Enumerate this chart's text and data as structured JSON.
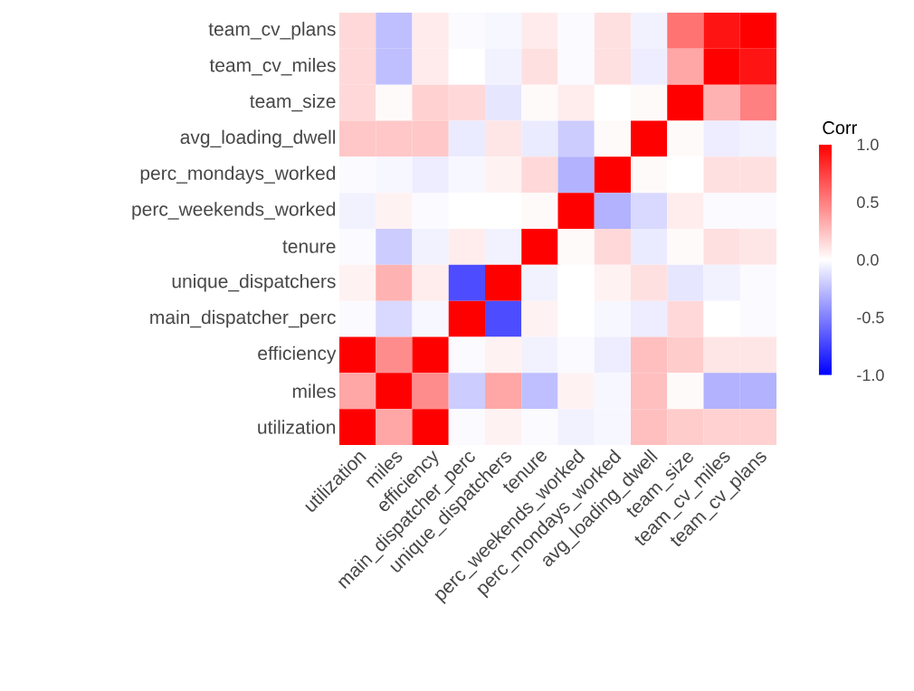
{
  "chart_data": {
    "type": "heatmap",
    "clabel": "Corr",
    "categories": [
      "utilization",
      "miles",
      "efficiency",
      "main_dispatcher_perc",
      "unique_dispatchers",
      "tenure",
      "perc_weekends_worked",
      "perc_mondays_worked",
      "avg_loading_dwell",
      "team_size",
      "team_cv_miles",
      "team_cv_plans"
    ],
    "y_categories": [
      "team_cv_plans",
      "team_cv_miles",
      "team_size",
      "avg_loading_dwell",
      "perc_mondays_worked",
      "perc_weekends_worked",
      "tenure",
      "unique_dispatchers",
      "main_dispatcher_perc",
      "efficiency",
      "miles",
      "utilization"
    ],
    "cells": [
      [
        0.15,
        -0.25,
        0.08,
        -0.02,
        -0.03,
        0.08,
        -0.02,
        0.12,
        -0.05,
        0.55,
        0.92,
        1
      ],
      [
        0.15,
        -0.25,
        0.08,
        0,
        -0.05,
        0.12,
        -0.02,
        0.12,
        -0.07,
        0.35,
        1,
        0.92
      ],
      [
        0.15,
        0.02,
        0.18,
        0.15,
        -0.1,
        0.02,
        0.07,
        0,
        0.02,
        1,
        0.3,
        0.5
      ],
      [
        0.22,
        0.22,
        0.22,
        -0.08,
        0.1,
        -0.08,
        -0.2,
        0.02,
        1,
        0.02,
        -0.07,
        -0.05
      ],
      [
        -0.02,
        -0.03,
        -0.07,
        -0.03,
        0.05,
        0.15,
        -0.3,
        1,
        0.02,
        0,
        0.12,
        0.12
      ],
      [
        -0.05,
        0.05,
        -0.02,
        0,
        0,
        0.02,
        1,
        -0.3,
        -0.15,
        0.07,
        -0.02,
        -0.02
      ],
      [
        -0.02,
        -0.2,
        -0.05,
        0.07,
        -0.05,
        1,
        0.02,
        0.15,
        -0.08,
        0.02,
        0.12,
        0.1
      ],
      [
        0.05,
        0.3,
        0.07,
        -0.7,
        1,
        -0.05,
        0,
        0.05,
        0.12,
        -0.1,
        -0.05,
        -0.02
      ],
      [
        -0.02,
        -0.15,
        -0.03,
        1,
        -0.7,
        0.05,
        0,
        -0.03,
        -0.07,
        0.15,
        0,
        -0.02
      ],
      [
        1,
        0.45,
        1,
        -0.02,
        0.05,
        -0.05,
        -0.02,
        -0.07,
        0.25,
        0.2,
        0.1,
        0.1
      ],
      [
        0.35,
        1,
        0.45,
        -0.2,
        0.35,
        -0.25,
        0.05,
        -0.03,
        0.25,
        0.02,
        -0.3,
        -0.3
      ],
      [
        1,
        0.35,
        1,
        -0.02,
        0.05,
        -0.02,
        -0.05,
        -0.03,
        0.25,
        0.2,
        0.18,
        0.18
      ]
    ],
    "clim": [
      -1,
      1
    ],
    "cticks": [
      {
        "value": 1,
        "label": "1.0"
      },
      {
        "value": 0.5,
        "label": "0.5"
      },
      {
        "value": 0,
        "label": "0.0"
      },
      {
        "value": -0.5,
        "label": "-0.5"
      },
      {
        "value": -1,
        "label": "-1.0"
      }
    ]
  }
}
